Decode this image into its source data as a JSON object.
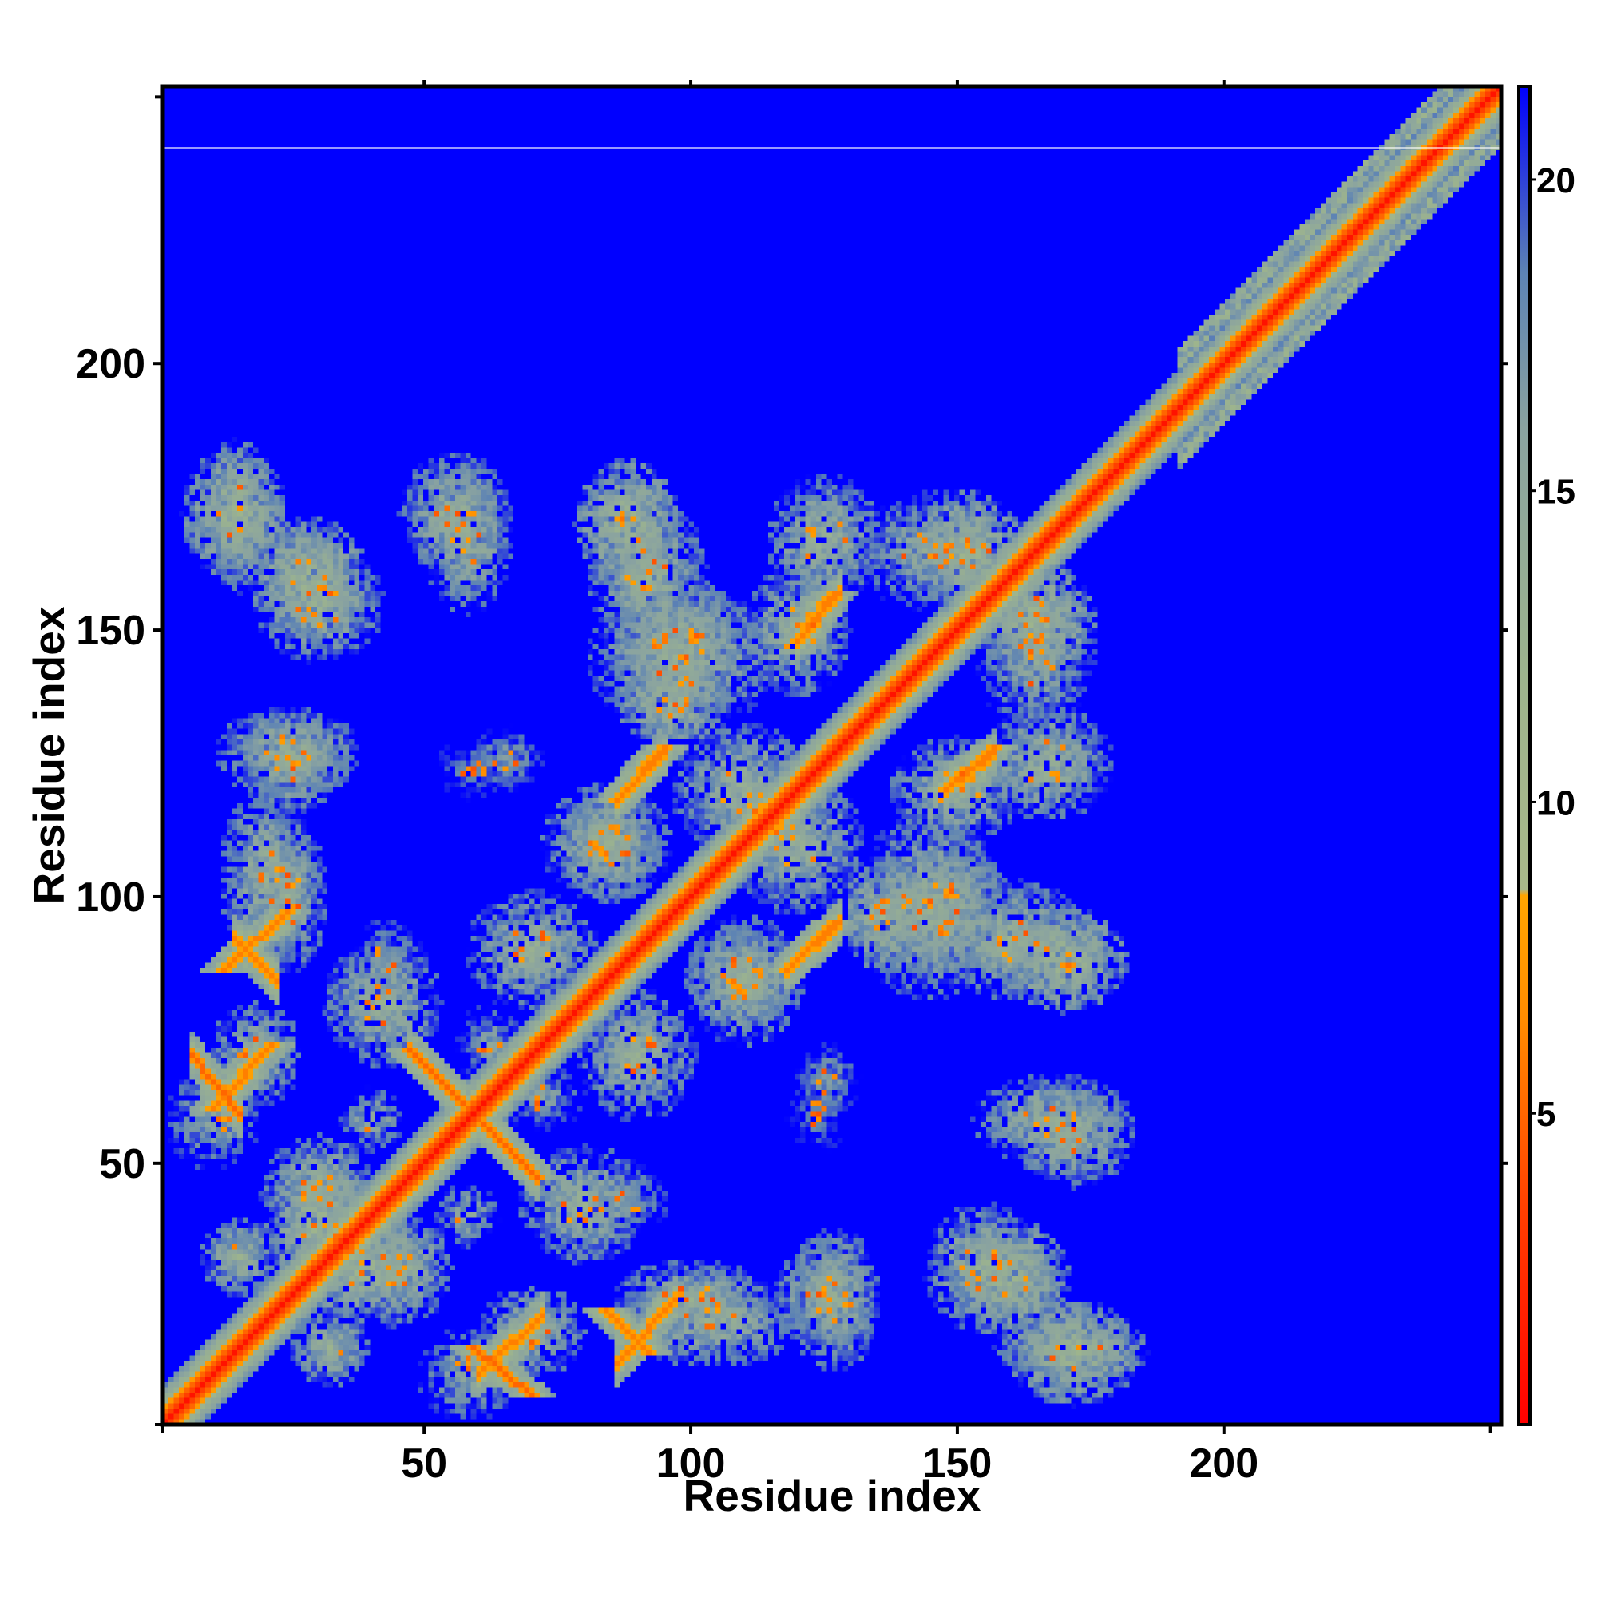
{
  "chart_data": {
    "type": "heatmap",
    "title": "",
    "xlabel": "Residue index",
    "ylabel": "Residue index",
    "n_residues": 252,
    "xlim": [
      1,
      252
    ],
    "ylim": [
      1,
      252
    ],
    "x_ticks": [
      50,
      100,
      150,
      200
    ],
    "y_ticks": [
      50,
      100,
      150,
      200
    ],
    "colorbar": {
      "range": [
        0,
        21.5
      ],
      "ticks": [
        5,
        10,
        15,
        20
      ],
      "colors": [
        {
          "stop": 0,
          "color": "#ff0000"
        },
        {
          "stop": 3.5,
          "color": "#ff4000"
        },
        {
          "stop": 6.5,
          "color": "#ff8c00"
        },
        {
          "stop": 8.5,
          "color": "#ffa500"
        },
        {
          "stop": 8.6,
          "color": "#a9b98a"
        },
        {
          "stop": 12,
          "color": "#9db48d"
        },
        {
          "stop": 16,
          "color": "#8aa3a0"
        },
        {
          "stop": 18.5,
          "color": "#5d83b4"
        },
        {
          "stop": 21.5,
          "color": "#0000ff"
        }
      ]
    },
    "background_color": "#0000ff",
    "matrix_description": "symmetric residue-residue distance map (Angstrom); diagonal band, contact blobs and anti-diagonal strand pairing features",
    "diagonal_band": {
      "core_width": 3,
      "halo_width": 7,
      "extended_width_after": [
        190,
        11
      ]
    },
    "antidiagonal_features": [
      {
        "start": [
          47,
          71
        ],
        "end": [
          71,
          47
        ],
        "min_distance": 5
      },
      {
        "start": [
          59,
          15
        ],
        "end": [
          70,
          6
        ],
        "min_distance": 5
      },
      {
        "start": [
          84,
          22
        ],
        "end": [
          92,
          14
        ],
        "min_distance": 6
      }
    ],
    "parallel_features": [
      {
        "start": [
          10,
          60
        ],
        "end": [
          21,
          72
        ],
        "min_distance": 6
      },
      {
        "start": [
          12,
          86
        ],
        "end": [
          24,
          97
        ],
        "min_distance": 6
      },
      {
        "start": [
          86,
          118
        ],
        "end": [
          95,
          128
        ],
        "min_distance": 6
      },
      {
        "start": [
          118,
          86
        ],
        "end": [
          127,
          95
        ],
        "min_distance": 6
      },
      {
        "start": [
          120,
          148
        ],
        "end": [
          127,
          157
        ],
        "min_distance": 6
      },
      {
        "start": [
          148,
          120
        ],
        "end": [
          157,
          128
        ],
        "min_distance": 6
      }
    ],
    "contact_blobs": [
      {
        "x": 14,
        "y": 172,
        "rx": 8,
        "ry": 10,
        "d": 11
      },
      {
        "x": 28,
        "y": 160,
        "rx": 9,
        "ry": 9,
        "d": 11
      },
      {
        "x": 55,
        "y": 172,
        "rx": 8,
        "ry": 9,
        "d": 12
      },
      {
        "x": 88,
        "y": 170,
        "rx": 8,
        "ry": 10,
        "d": 11
      },
      {
        "x": 98,
        "y": 148,
        "rx": 10,
        "ry": 10,
        "d": 12
      },
      {
        "x": 96,
        "y": 136,
        "rx": 8,
        "ry": 6,
        "d": 11
      },
      {
        "x": 125,
        "y": 167,
        "rx": 9,
        "ry": 10,
        "d": 12
      },
      {
        "x": 152,
        "y": 165,
        "rx": 9,
        "ry": 9,
        "d": 11
      },
      {
        "x": 165,
        "y": 145,
        "rx": 9,
        "ry": 12,
        "d": 13
      },
      {
        "x": 24,
        "y": 127,
        "rx": 11,
        "ry": 7,
        "d": 12
      },
      {
        "x": 65,
        "y": 126,
        "rx": 6,
        "ry": 5,
        "d": 14
      },
      {
        "x": 20,
        "y": 104,
        "rx": 7,
        "ry": 14,
        "d": 12
      },
      {
        "x": 70,
        "y": 90,
        "rx": 10,
        "ry": 9,
        "d": 12
      },
      {
        "x": 120,
        "y": 110,
        "rx": 10,
        "ry": 11,
        "d": 12
      },
      {
        "x": 150,
        "y": 120,
        "rx": 10,
        "ry": 8,
        "d": 12
      },
      {
        "x": 160,
        "y": 92,
        "rx": 12,
        "ry": 9,
        "d": 12
      },
      {
        "x": 145,
        "y": 98,
        "rx": 12,
        "ry": 14,
        "d": 12
      },
      {
        "x": 110,
        "y": 85,
        "rx": 9,
        "ry": 8,
        "d": 12
      },
      {
        "x": 84,
        "y": 110,
        "rx": 10,
        "ry": 9,
        "d": 12
      },
      {
        "x": 42,
        "y": 80,
        "rx": 9,
        "ry": 10,
        "d": 12
      },
      {
        "x": 10,
        "y": 58,
        "rx": 7,
        "ry": 8,
        "d": 13
      },
      {
        "x": 30,
        "y": 38,
        "rx": 8,
        "ry": 10,
        "d": 11
      },
      {
        "x": 45,
        "y": 30,
        "rx": 8,
        "ry": 9,
        "d": 12
      },
      {
        "x": 15,
        "y": 32,
        "rx": 6,
        "ry": 6,
        "d": 12
      },
      {
        "x": 72,
        "y": 62,
        "rx": 7,
        "ry": 5,
        "d": 14
      },
      {
        "x": 88,
        "y": 43,
        "rx": 7,
        "ry": 6,
        "d": 14
      },
      {
        "x": 100,
        "y": 24,
        "rx": 12,
        "ry": 6,
        "d": 12
      },
      {
        "x": 125,
        "y": 25,
        "rx": 8,
        "ry": 8,
        "d": 12
      },
      {
        "x": 155,
        "y": 30,
        "rx": 9,
        "ry": 10,
        "d": 12
      },
      {
        "x": 172,
        "y": 15,
        "rx": 12,
        "ry": 5,
        "d": 12
      },
      {
        "x": 168,
        "y": 58,
        "rx": 12,
        "ry": 7,
        "d": 12
      },
      {
        "x": 124,
        "y": 60,
        "rx": 5,
        "ry": 8,
        "d": 15
      },
      {
        "x": 70,
        "y": 18,
        "rx": 8,
        "ry": 7,
        "d": 12
      },
      {
        "x": 58,
        "y": 40,
        "rx": 5,
        "ry": 5,
        "d": 13
      }
    ]
  }
}
